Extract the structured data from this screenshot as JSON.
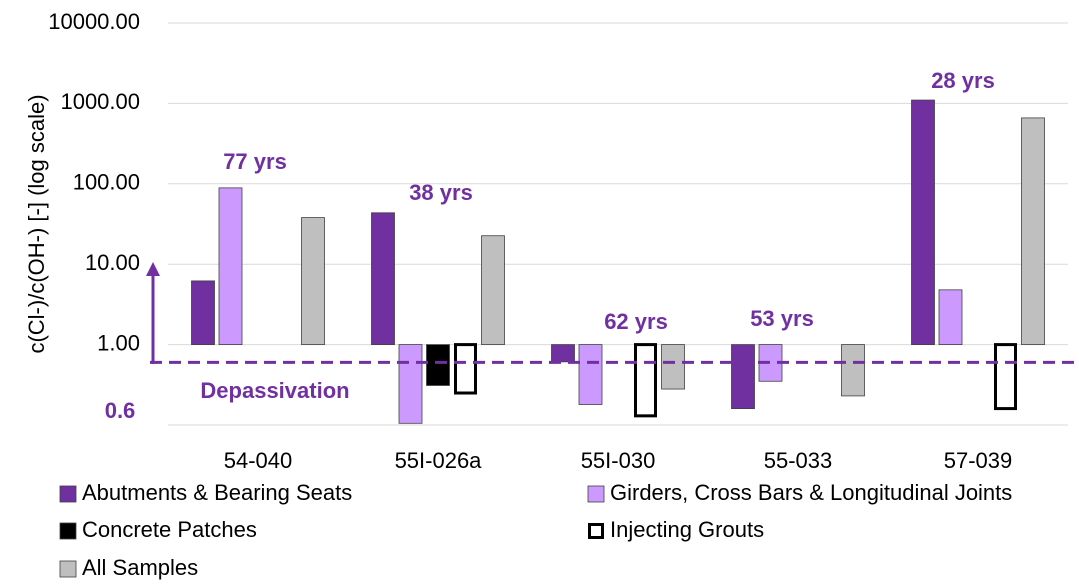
{
  "chart_data": {
    "type": "bar",
    "ylabel": "c(Cl-)/c(OH-) [-] (log scale)",
    "log_scale": true,
    "grid": true,
    "ylim": [
      0.1,
      10000
    ],
    "yticks": [
      {
        "value": 1,
        "label": "1.00"
      },
      {
        "value": 10,
        "label": "10.00"
      },
      {
        "value": 100,
        "label": "100.00"
      },
      {
        "value": 1000,
        "label": "1000.00"
      },
      {
        "value": 10000,
        "label": "10000.00"
      }
    ],
    "bar_base": 1,
    "categories": [
      "54-040",
      "55I-026a",
      "55I-030",
      "55-033",
      "57-039"
    ],
    "series": [
      {
        "name": "Abutments & Bearing Seats",
        "color": "#7030a0",
        "values": [
          6.2,
          43.6,
          0.61,
          0.16,
          1100
        ]
      },
      {
        "name": "Girders, Cross Bars & Longitudinal Joints",
        "color": "#cc99ff",
        "values": [
          89,
          0.105,
          0.18,
          0.35,
          4.8
        ]
      },
      {
        "name": "Concrete Patches",
        "color": "#000000",
        "values": [
          null,
          0.31,
          null,
          null,
          null
        ]
      },
      {
        "name": "Injecting Grouts",
        "color": "#ffffff",
        "edgecolor": "#000000",
        "values": [
          null,
          0.25,
          0.13,
          null,
          0.16
        ]
      },
      {
        "name": "All Samples",
        "color": "#bfbfbf",
        "values": [
          38,
          22.6,
          0.28,
          0.23,
          660
        ]
      }
    ],
    "threshold": {
      "value": 0.6,
      "label": "0.6",
      "text": "Depassivation",
      "color": "#7030a0"
    },
    "annotations": [
      "77 yrs",
      "38 yrs",
      "62 yrs",
      "53 yrs",
      "28 yrs"
    ]
  }
}
